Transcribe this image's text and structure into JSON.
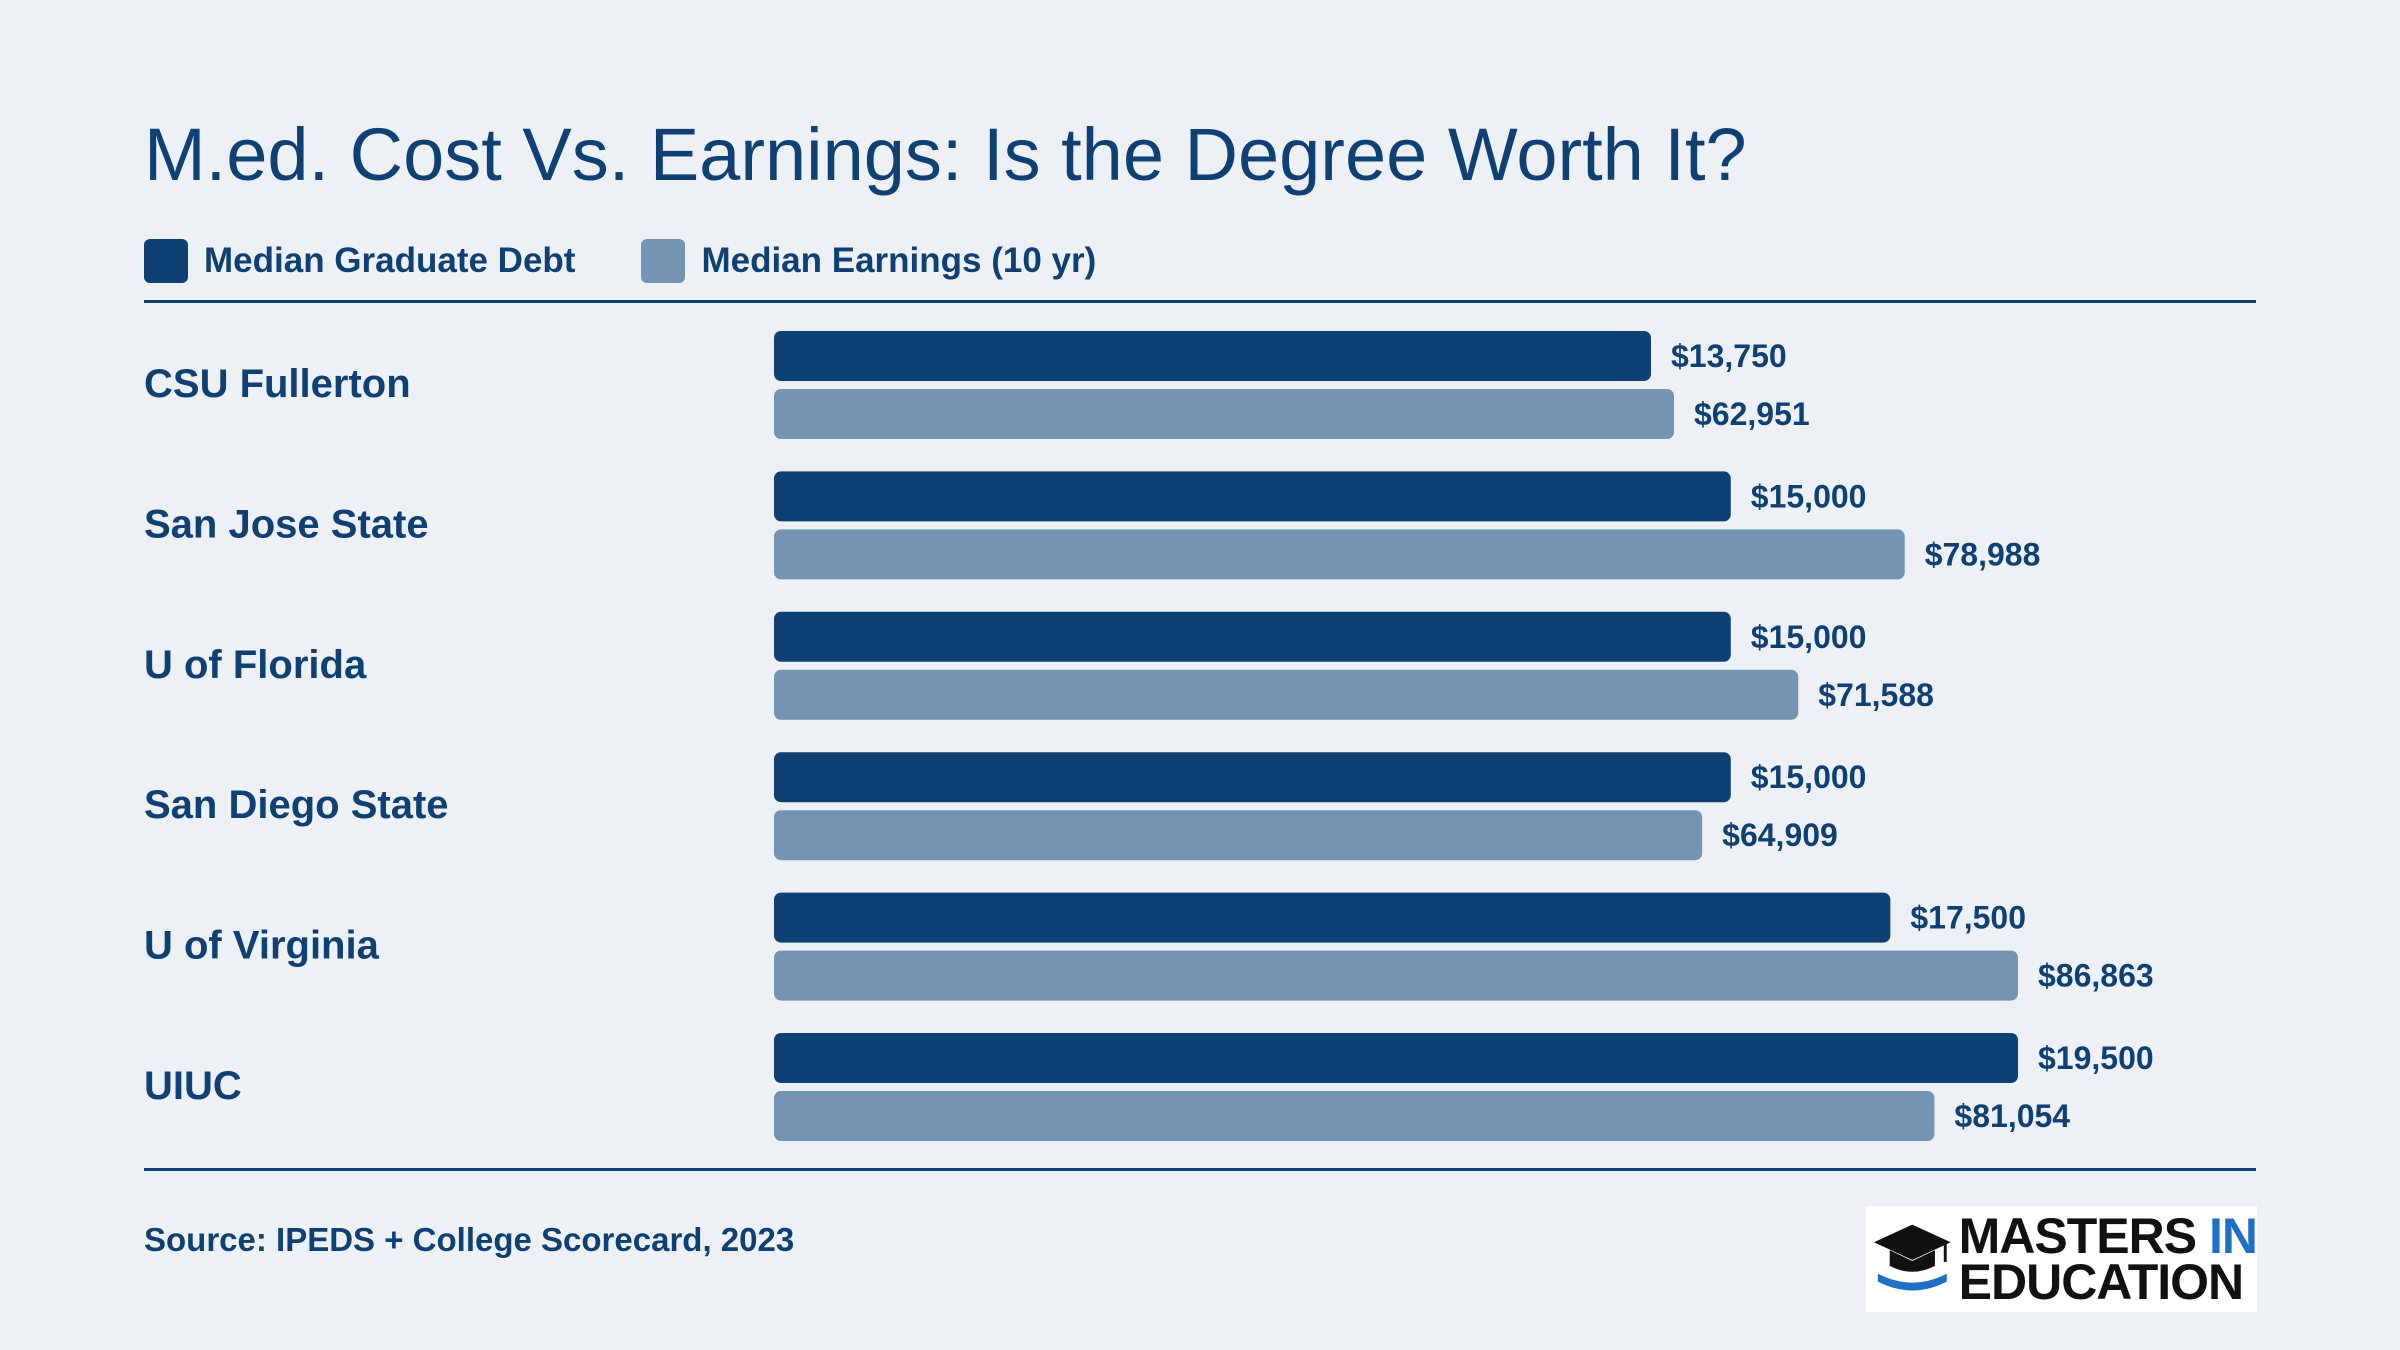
{
  "title": "M.ed. Cost Vs. Earnings: Is the Degree Worth It?",
  "source": "Source: IPEDS + College Scorecard, 2023",
  "logo": {
    "line1_main": "MASTERS",
    "line1_accent": "IN",
    "line2": "EDUCATION"
  },
  "colors": {
    "debt": "#0f4074",
    "earnings": "#7593b3",
    "text": "#0f4074",
    "background": "#edf0f5",
    "logo_accent": "#1f6fc4"
  },
  "chart_data": {
    "type": "bar",
    "orientation": "horizontal",
    "title": "M.ed. Cost Vs. Earnings: Is the Degree Worth It?",
    "categories": [
      "CSU Fullerton",
      "San Jose State",
      "U of Florida",
      "San Diego State",
      "U of Virginia",
      "UIUC"
    ],
    "series": [
      {
        "name": "Median Graduate Debt",
        "values": [
          13750,
          15000,
          15000,
          15000,
          17500,
          19500
        ],
        "labels": [
          "$13,750",
          "$15,000",
          "$15,000",
          "$15,000",
          "$17,500",
          "$19,500"
        ]
      },
      {
        "name": "Median Earnings (10 yr)",
        "values": [
          62951,
          78988,
          71588,
          64909,
          86863,
          81054
        ],
        "labels": [
          "$62,951",
          "$78,988",
          "$71,588",
          "$64,909",
          "$86,863",
          "$81,054"
        ]
      }
    ],
    "legend_position": "top-left",
    "grid": false
  }
}
